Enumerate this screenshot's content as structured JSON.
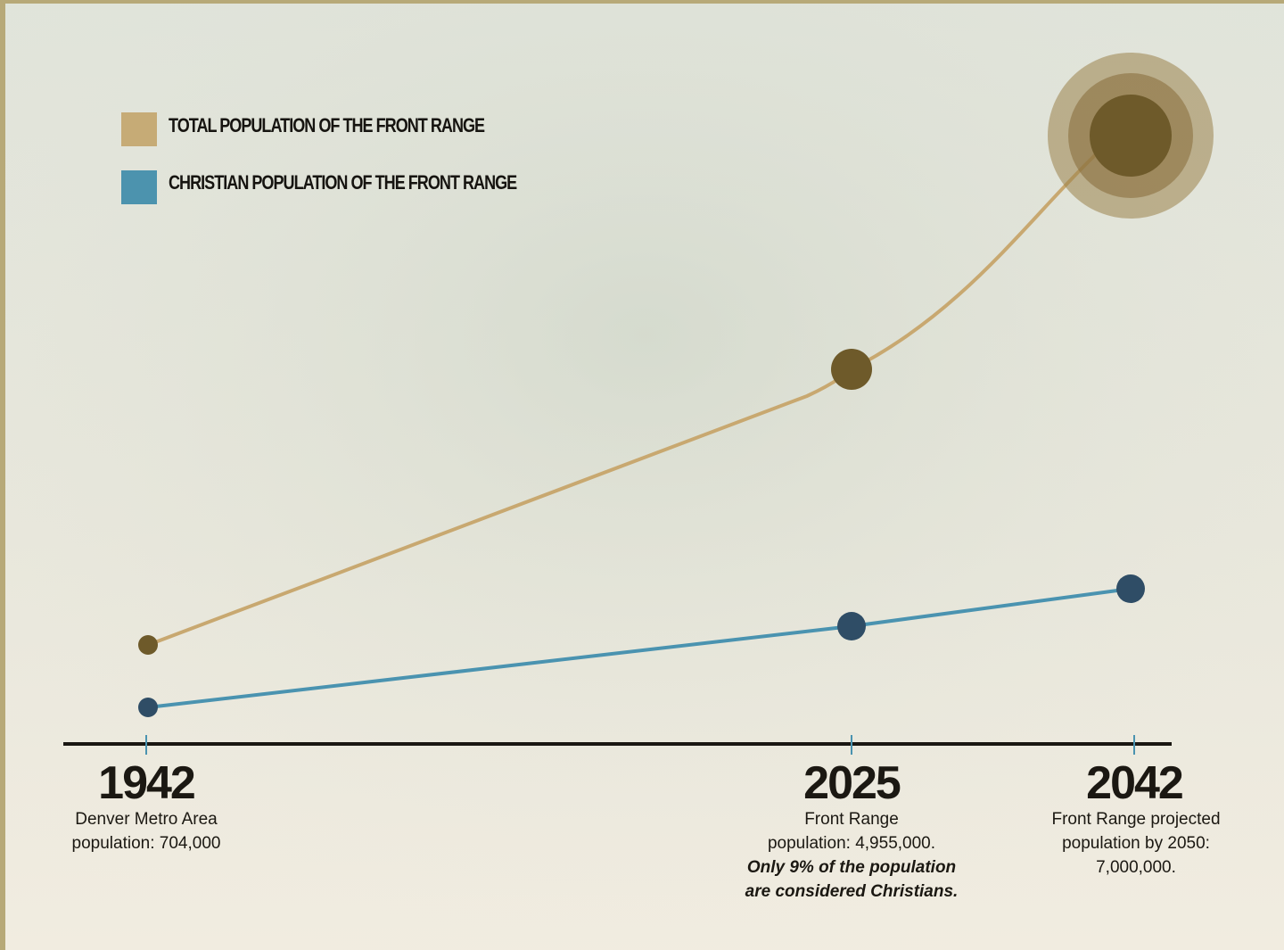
{
  "colors": {
    "total_line": "#c8a870",
    "total_point": "#6e5a2a",
    "christian_line": "#4a93b0",
    "christian_point": "#2f4d66",
    "axis": "#1a1712",
    "total_swatch": "#c6ab76",
    "christian_swatch": "#4c93ae"
  },
  "legend": [
    {
      "label": "TOTAL POPULATION OF THE FRONT RANGE",
      "color": "#c6ab76"
    },
    {
      "label": "CHRISTIAN POPULATION OF THE FRONT RANGE",
      "color": "#4c93ae"
    }
  ],
  "annotations": [
    {
      "year": "1942",
      "lines": [
        "Denver Metro Area",
        "population: 704,000"
      ],
      "emphasis": []
    },
    {
      "year": "2025",
      "lines": [
        "Front Range",
        "population: 4,955,000."
      ],
      "emphasis": [
        "Only 9% of the population",
        "are considered Christians."
      ]
    },
    {
      "year": "2042",
      "lines": [
        "Front Range projected",
        "population by 2050:",
        "7,000,000."
      ],
      "emphasis": []
    }
  ],
  "chart_data": {
    "type": "line",
    "title": "",
    "xlabel": "",
    "ylabel": "",
    "categories": [
      "1942",
      "2025",
      "2042"
    ],
    "series": [
      {
        "name": "TOTAL POPULATION OF THE FRONT RANGE",
        "values": [
          704000,
          4955000,
          7000000
        ]
      },
      {
        "name": "CHRISTIAN POPULATION OF THE FRONT RANGE",
        "values": [
          null,
          445950,
          null
        ]
      }
    ],
    "legend_position": "top-left",
    "grid": false
  }
}
